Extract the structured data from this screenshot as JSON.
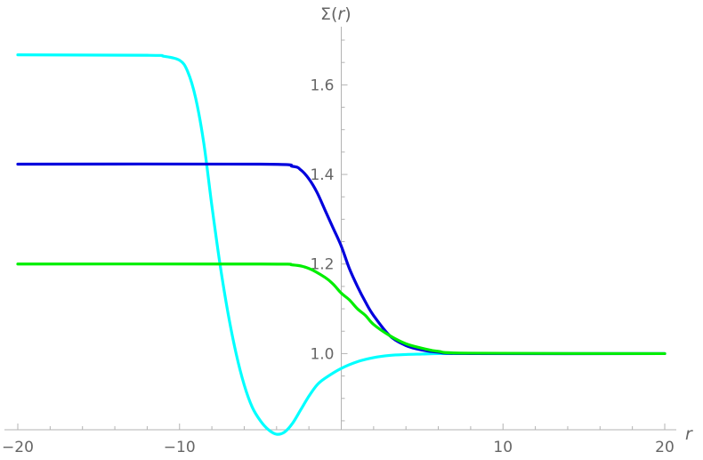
{
  "chart_data": {
    "type": "line",
    "xlabel": "r",
    "ylabel_parts": {
      "sigma": "Σ",
      "open": "(",
      "var": "r",
      "close": ")"
    },
    "xlim": [
      -20,
      20
    ],
    "ylim": [
      0.83,
      1.71
    ],
    "x_ticks": [
      -20,
      -10,
      0,
      10,
      20
    ],
    "x_tick_labels": [
      "−20",
      "−10",
      "",
      "10",
      "20"
    ],
    "y_ticks": [
      1.0,
      1.2,
      1.4,
      1.6
    ],
    "y_tick_labels": [
      "1.0",
      "1.2",
      "1.4",
      "1.6"
    ],
    "grid": false,
    "series": [
      {
        "color": "#00ffff",
        "x": [
          -20,
          -12,
          -11,
          -10,
          -9.5,
          -9,
          -8.5,
          -8,
          -7.5,
          -7,
          -6.5,
          -6,
          -5.5,
          -5,
          -4.5,
          -4,
          -3.5,
          -3,
          -2.5,
          -2,
          -1.5,
          -1,
          0,
          1,
          2,
          3,
          4,
          5,
          6,
          8,
          10,
          20
        ],
        "y": [
          1.667,
          1.666,
          1.664,
          1.655,
          1.63,
          1.57,
          1.47,
          1.33,
          1.2,
          1.09,
          1.0,
          0.93,
          0.88,
          0.85,
          0.83,
          0.82,
          0.825,
          0.845,
          0.875,
          0.905,
          0.93,
          0.945,
          0.967,
          0.982,
          0.991,
          0.996,
          0.998,
          0.999,
          1.0,
          1.0,
          1.0,
          1.0
        ]
      },
      {
        "color": "#0000dd",
        "x": [
          -20,
          -5,
          -3,
          -2.5,
          -2,
          -1.5,
          -1,
          -0.5,
          0,
          0.5,
          1,
          1.5,
          2,
          3,
          4,
          5,
          6,
          8,
          20
        ],
        "y": [
          1.423,
          1.423,
          1.418,
          1.41,
          1.39,
          1.36,
          1.32,
          1.28,
          1.24,
          1.19,
          1.15,
          1.115,
          1.085,
          1.04,
          1.018,
          1.008,
          1.003,
          1.0,
          1.0
        ]
      },
      {
        "color": "#00ee00",
        "x": [
          -20,
          -5,
          -3,
          -2,
          -1,
          -0.5,
          0,
          0.5,
          1,
          1.5,
          2,
          3,
          4,
          5,
          6,
          8,
          20
        ],
        "y": [
          1.2,
          1.2,
          1.198,
          1.19,
          1.17,
          1.155,
          1.135,
          1.12,
          1.1,
          1.085,
          1.065,
          1.04,
          1.022,
          1.012,
          1.005,
          1.001,
          1.0
        ]
      }
    ]
  }
}
